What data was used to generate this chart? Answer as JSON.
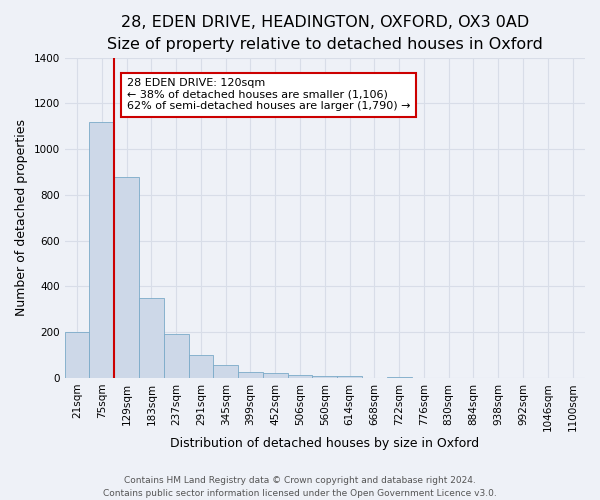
{
  "title": "28, EDEN DRIVE, HEADINGTON, OXFORD, OX3 0AD",
  "subtitle": "Size of property relative to detached houses in Oxford",
  "xlabel": "Distribution of detached houses by size in Oxford",
  "ylabel": "Number of detached properties",
  "bin_labels": [
    "21sqm",
    "75sqm",
    "129sqm",
    "183sqm",
    "237sqm",
    "291sqm",
    "345sqm",
    "399sqm",
    "452sqm",
    "506sqm",
    "560sqm",
    "614sqm",
    "668sqm",
    "722sqm",
    "776sqm",
    "830sqm",
    "884sqm",
    "938sqm",
    "992sqm",
    "1046sqm",
    "1100sqm"
  ],
  "bar_heights": [
    200,
    1120,
    880,
    350,
    190,
    100,
    55,
    25,
    20,
    15,
    10,
    10,
    0,
    5,
    0,
    0,
    0,
    0,
    0,
    0,
    0
  ],
  "bar_color": "#cdd8e8",
  "bar_edge_color": "#7aaac8",
  "property_line_color": "#cc0000",
  "annotation_line1": "28 EDEN DRIVE: 120sqm",
  "annotation_line2": "← 38% of detached houses are smaller (1,106)",
  "annotation_line3": "62% of semi-detached houses are larger (1,790) →",
  "annotation_box_color": "#ffffff",
  "annotation_box_edge_color": "#cc0000",
  "ylim": [
    0,
    1400
  ],
  "yticks": [
    0,
    200,
    400,
    600,
    800,
    1000,
    1200,
    1400
  ],
  "footer_line1": "Contains HM Land Registry data © Crown copyright and database right 2024.",
  "footer_line2": "Contains public sector information licensed under the Open Government Licence v3.0.",
  "bg_color": "#eef1f7",
  "grid_color": "#d8dde8",
  "title_fontsize": 11.5,
  "subtitle_fontsize": 9.5,
  "axis_label_fontsize": 9,
  "tick_fontsize": 7.5,
  "annotation_fontsize": 8,
  "footer_fontsize": 6.5
}
